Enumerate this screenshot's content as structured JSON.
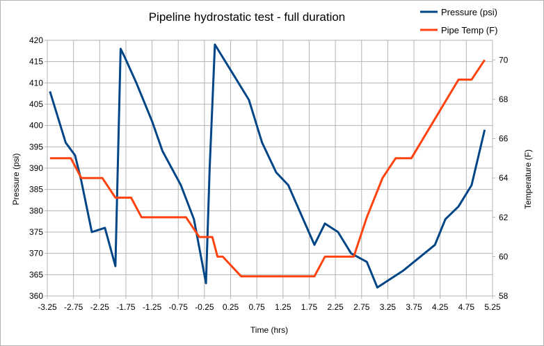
{
  "chart_data": {
    "type": "line",
    "title": "Pipeline hydrostatic test - full duration",
    "xlabel": "Time (hrs)",
    "ylabel_left": "Pressure (psi)",
    "ylabel_right": "Temperature (F)",
    "xlim": [
      -3.25,
      5.25
    ],
    "ylim_left": [
      360,
      420
    ],
    "ylim_right": [
      58,
      71
    ],
    "x_ticks": [
      "-3.25",
      "-2.75",
      "-2.25",
      "-1.75",
      "-1.25",
      "-0.75",
      "-0.25",
      "0.25",
      "0.75",
      "1.25",
      "1.75",
      "2.25",
      "2.75",
      "3.25",
      "3.75",
      "4.25",
      "4.75",
      "5.25"
    ],
    "y_left_ticks": [
      "360",
      "365",
      "370",
      "375",
      "380",
      "385",
      "390",
      "395",
      "400",
      "405",
      "410",
      "415",
      "420"
    ],
    "y_right_ticks": [
      "58",
      "60",
      "62",
      "64",
      "66",
      "68",
      "70"
    ],
    "grid": true,
    "legend_position": "top-right",
    "series": [
      {
        "name": "Pressure (psi)",
        "axis": "left",
        "color": "#004586",
        "x": [
          -3.2,
          -2.9,
          -2.72,
          -2.6,
          -2.4,
          -2.15,
          -1.95,
          -1.85,
          -1.77,
          -1.55,
          -1.25,
          -1.05,
          -0.7,
          -0.45,
          -0.22,
          -0.15,
          -0.05,
          0.35,
          0.6,
          0.85,
          1.12,
          1.35,
          1.6,
          1.85,
          2.05,
          2.3,
          2.55,
          2.85,
          3.05,
          3.55,
          3.85,
          4.15,
          4.35,
          4.6,
          4.85,
          5.1
        ],
        "y": [
          408,
          396,
          393,
          387,
          375,
          376,
          367,
          418,
          416,
          410,
          401,
          394,
          386,
          378,
          363,
          390,
          419,
          411,
          406,
          396,
          389,
          386,
          379,
          372,
          377,
          375,
          370,
          368,
          362,
          366,
          369,
          372,
          378,
          381,
          386,
          399
        ]
      },
      {
        "name": "Pipe Temp (F)",
        "axis": "right",
        "color": "#ff420e",
        "x": [
          -3.2,
          -2.8,
          -2.6,
          -2.2,
          -1.95,
          -1.65,
          -1.45,
          -0.6,
          -0.35,
          -0.1,
          0.0,
          0.1,
          0.45,
          1.85,
          2.05,
          2.6,
          2.85,
          3.15,
          3.4,
          3.7,
          4.15,
          4.6,
          4.85,
          5.1
        ],
        "y": [
          65,
          65,
          64,
          64,
          63,
          63,
          62,
          62,
          61,
          61,
          60,
          60,
          59,
          59,
          60,
          60,
          62,
          64,
          65,
          65,
          67,
          69,
          69,
          70
        ]
      }
    ]
  }
}
